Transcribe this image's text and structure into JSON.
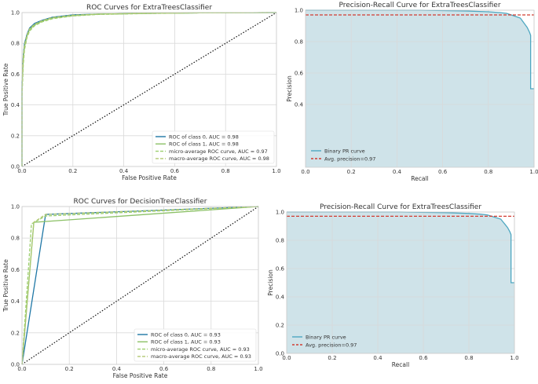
{
  "colors": {
    "class0": "#1f77a6",
    "class1": "#8cc167",
    "micro": "#9ccf6e",
    "macro": "#b0c870",
    "chance": "#111111",
    "pr_line": "#4ea7c1",
    "pr_fill": "#cfe3e9",
    "avg_precision": "#d23c32"
  },
  "chart_data": [
    {
      "type": "line",
      "title": "ROC Curves for ExtraTreesClassifier",
      "xlabel": "False Positive Rate",
      "ylabel": "True Positive Rate",
      "xlim": [
        0,
        1
      ],
      "ylim": [
        0,
        1
      ],
      "xticks": [
        "0.0",
        "0.2",
        "0.4",
        "0.6",
        "0.8",
        "1.0"
      ],
      "yticks": [
        "0.0",
        "0.2",
        "0.4",
        "0.6",
        "0.8",
        "1.0"
      ],
      "grid": true,
      "legend_position": "lower-right",
      "series": [
        {
          "name": "ROC of class 0, AUC = 0.98",
          "color": "#1f77a6",
          "dash": "",
          "x": [
            0,
            0.0,
            0.005,
            0.01,
            0.02,
            0.03,
            0.05,
            0.08,
            0.12,
            0.2,
            0.3,
            0.5,
            0.7,
            1.0
          ],
          "y": [
            0,
            0.55,
            0.72,
            0.8,
            0.86,
            0.9,
            0.93,
            0.95,
            0.97,
            0.985,
            0.99,
            0.995,
            0.998,
            1.0
          ]
        },
        {
          "name": "ROC of class 1, AUC = 0.98",
          "color": "#8cc167",
          "dash": "",
          "x": [
            0,
            0.0,
            0.005,
            0.01,
            0.02,
            0.03,
            0.05,
            0.08,
            0.12,
            0.2,
            0.3,
            0.5,
            0.7,
            1.0
          ],
          "y": [
            0,
            0.5,
            0.7,
            0.78,
            0.85,
            0.89,
            0.92,
            0.945,
            0.965,
            0.98,
            0.99,
            0.995,
            0.998,
            1.0
          ]
        },
        {
          "name": "micro-average ROC curve, AUC = 0.97",
          "color": "#9ccf6e",
          "dash": "4,2",
          "x": [
            0,
            0.0,
            0.005,
            0.01,
            0.02,
            0.03,
            0.05,
            0.08,
            0.12,
            0.2,
            0.3,
            0.5,
            0.7,
            1.0
          ],
          "y": [
            0,
            0.45,
            0.66,
            0.76,
            0.84,
            0.88,
            0.915,
            0.94,
            0.96,
            0.978,
            0.988,
            0.994,
            0.998,
            1.0
          ]
        },
        {
          "name": "macro-average ROC curve, AUC = 0.98",
          "color": "#b0c870",
          "dash": "4,2",
          "x": [
            0,
            0.0,
            0.005,
            0.01,
            0.02,
            0.03,
            0.05,
            0.08,
            0.12,
            0.2,
            0.3,
            0.5,
            0.7,
            1.0
          ],
          "y": [
            0,
            0.52,
            0.71,
            0.79,
            0.855,
            0.895,
            0.925,
            0.948,
            0.968,
            0.983,
            0.99,
            0.995,
            0.998,
            1.0
          ]
        }
      ]
    },
    {
      "type": "area",
      "title": "Precision-Recall Curve for ExtraTreesClassifier",
      "xlabel": "Recall",
      "ylabel": "Precision",
      "xlim": [
        0,
        1
      ],
      "ylim": [
        0,
        1
      ],
      "xticks": [
        "0.0",
        "0.2",
        "0.4",
        "0.6",
        "0.8",
        "1.0"
      ],
      "yticks": [
        "0.4",
        "0.6",
        "0.8",
        "1.0"
      ],
      "grid": true,
      "legend_position": "lower-left",
      "series": [
        {
          "name": "Binary PR curve",
          "x": [
            0,
            0.5,
            0.7,
            0.8,
            0.85,
            0.88,
            0.9,
            0.92,
            0.94,
            0.95,
            0.96,
            0.97,
            0.98,
            0.985,
            0.985,
            1.0
          ],
          "y": [
            1.0,
            1.0,
            0.995,
            0.99,
            0.985,
            0.98,
            0.97,
            0.96,
            0.95,
            0.93,
            0.91,
            0.89,
            0.86,
            0.84,
            0.5,
            0.5
          ]
        }
      ],
      "avg_precision": {
        "label": "Avg. precision=0.97",
        "value": 0.97
      }
    },
    {
      "type": "line",
      "title": "ROC Curves for DecisionTreeClassifier",
      "xlabel": "False Positive Rate",
      "ylabel": "True Positive Rate",
      "xlim": [
        0,
        1
      ],
      "ylim": [
        0,
        1
      ],
      "xticks": [
        "0.0",
        "0.2",
        "0.4",
        "0.6",
        "0.8",
        "1.0"
      ],
      "yticks": [
        "0.0",
        "0.2",
        "0.4",
        "0.6",
        "0.8",
        "1.0"
      ],
      "grid": true,
      "legend_position": "lower-right",
      "series": [
        {
          "name": "ROC of class 0, AUC = 0.93",
          "color": "#1f77a6",
          "dash": "",
          "x": [
            0,
            0.1,
            1.0
          ],
          "y": [
            0,
            0.95,
            1.0
          ]
        },
        {
          "name": "ROC of class 1, AUC = 0.93",
          "color": "#8cc167",
          "dash": "",
          "x": [
            0,
            0.05,
            1.0
          ],
          "y": [
            0,
            0.9,
            1.0
          ]
        },
        {
          "name": "micro-average ROC curve, AUC = 0.93",
          "color": "#9ccf6e",
          "dash": "4,2",
          "x": [
            0,
            0.04,
            0.1,
            1.0
          ],
          "y": [
            0,
            0.89,
            0.94,
            1.0
          ]
        },
        {
          "name": "macro-average ROC curve, AUC = 0.93",
          "color": "#b0c870",
          "dash": "4,2",
          "x": [
            0,
            0.05,
            0.1,
            1.0
          ],
          "y": [
            0,
            0.9,
            0.95,
            1.0
          ]
        }
      ]
    },
    {
      "type": "area",
      "title": "Precision-Recall Curve for ExtraTreesClassifier",
      "xlabel": "Recall",
      "ylabel": "Precision",
      "xlim": [
        0,
        1
      ],
      "ylim": [
        0,
        1
      ],
      "xticks": [
        "0.0",
        "0.2",
        "0.4",
        "0.6",
        "0.8",
        "1.0"
      ],
      "yticks": [
        "0.0",
        "0.2",
        "0.4",
        "0.6",
        "0.8",
        "1.0"
      ],
      "grid": true,
      "legend_position": "lower-left",
      "series": [
        {
          "name": "Binary PR curve",
          "x": [
            0,
            0.5,
            0.7,
            0.8,
            0.85,
            0.88,
            0.9,
            0.92,
            0.94,
            0.95,
            0.96,
            0.97,
            0.98,
            0.985,
            0.985,
            1.0
          ],
          "y": [
            1.0,
            1.0,
            0.995,
            0.99,
            0.985,
            0.98,
            0.97,
            0.96,
            0.95,
            0.93,
            0.91,
            0.89,
            0.86,
            0.84,
            0.5,
            0.5
          ]
        }
      ],
      "avg_precision": {
        "label": "Avg. precision=0.97",
        "value": 0.97
      }
    }
  ]
}
